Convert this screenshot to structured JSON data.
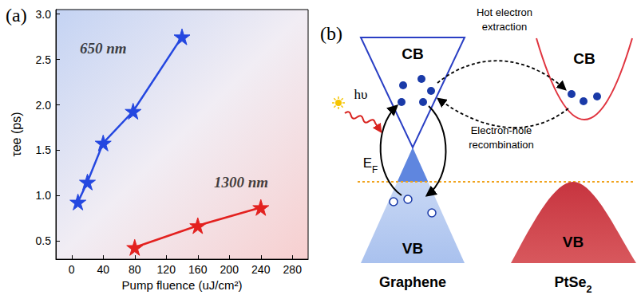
{
  "chart_data": {
    "type": "line",
    "title": "(a)",
    "x_label": "Pump fluence (uJ/cm²)",
    "y_label": "τee (ps)",
    "xlim": [
      -20,
      300
    ],
    "xticks": [
      0,
      40,
      80,
      120,
      160,
      200,
      240,
      280
    ],
    "ylim": [
      0.3,
      3.05
    ],
    "yticks": [
      {
        "value": 0.5,
        "label": "0.5"
      },
      {
        "value": 1,
        "label": "1.0"
      },
      {
        "value": 1.5,
        "label": "1.5"
      },
      {
        "value": 2,
        "label": "2.0"
      },
      {
        "value": 2.5,
        "label": "2.5"
      },
      {
        "value": 3,
        "label": "3.0"
      }
    ],
    "grid": false,
    "series": [
      {
        "color": "#2447e0",
        "marker": "star",
        "x": [
          8,
          20,
          40,
          78,
          140
        ],
        "values": [
          0.93,
          1.15,
          1.58,
          1.93,
          2.75
        ]
      },
      {
        "color": "#e3211f",
        "marker": "star",
        "x": [
          80,
          160,
          240
        ],
        "values": [
          0.43,
          0.67,
          0.87
        ]
      }
    ],
    "annotations": [
      {
        "text": "650 nm",
        "x": 40,
        "y": 2.62
      },
      {
        "text": "1300 nm",
        "x": 215,
        "y": 1.15
      }
    ]
  },
  "diagram": {
    "panel_label": "(b)",
    "graphene": {
      "cb": "CB",
      "vb": "VB",
      "name": "Graphene"
    },
    "ptse2": {
      "cb": "CB",
      "vb": "VB",
      "name": {
        "text": "PtSe",
        "sub": "2"
      }
    },
    "photon": "hυ",
    "fermi_level": {
      "text": "E",
      "sub": "F"
    },
    "hot_electron_extraction": [
      "Hot electron",
      "extraction"
    ],
    "recombination": [
      "Electron-hole",
      "recombination"
    ]
  }
}
